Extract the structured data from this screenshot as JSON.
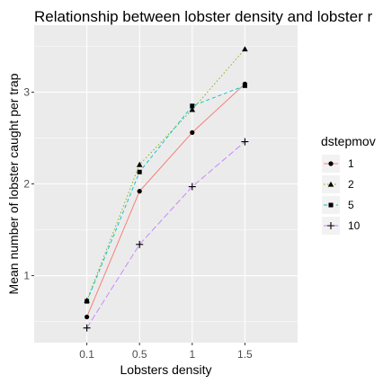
{
  "chart_data": {
    "type": "line",
    "title": "Relationship between lobster density and lobster r",
    "xlabel": "Lobsters density",
    "ylabel": "Mean number of lobster caught per trap",
    "categories": [
      "0.1",
      "0.5",
      "1",
      "1.5"
    ],
    "ylim": [
      0.27,
      3.73
    ],
    "yticks": [
      1,
      2,
      3
    ],
    "grid": true,
    "legend": {
      "title": "dstepmov",
      "placement": "right"
    },
    "series": [
      {
        "name": "1",
        "values": [
          0.55,
          1.92,
          2.56,
          3.09
        ],
        "color": "#F8766D",
        "dash": "solid",
        "marker": "circle"
      },
      {
        "name": "2",
        "values": [
          0.73,
          2.21,
          2.81,
          3.47
        ],
        "color": "#7CAE00",
        "dash": "dotted",
        "marker": "triangle"
      },
      {
        "name": "5",
        "values": [
          0.72,
          2.13,
          2.85,
          3.07
        ],
        "color": "#00BFC4",
        "dash": "dashed",
        "marker": "square"
      },
      {
        "name": "10",
        "values": [
          0.43,
          1.34,
          1.97,
          2.46
        ],
        "color": "#C77CFF",
        "dash": "longdash",
        "marker": "plus"
      }
    ]
  }
}
